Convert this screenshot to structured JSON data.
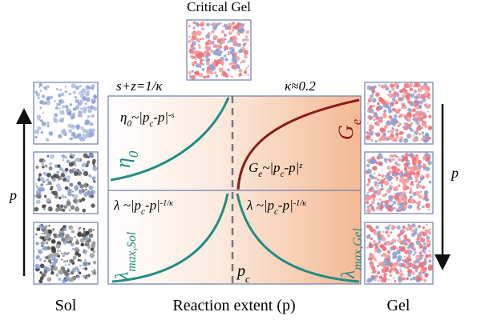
{
  "header": {
    "title": "Critical Gel"
  },
  "annotations": {
    "relation": "s+z=1/κ",
    "kappa": "κ≈0.2",
    "eta_law": {
      "lhs": "η",
      "lhs_sub": "0",
      "mid": "~|p",
      "mid_sub": "c",
      "tail": "-p|",
      "exp": "-s"
    },
    "ge_law": {
      "lhs": "G",
      "lhs_sub": "e",
      "mid": "~|p",
      "mid_sub": "c",
      "tail": "-p|",
      "exp": "z"
    },
    "lambda_sol_law": {
      "lhs": "λ",
      "mid": " ~|p",
      "mid_sub": "c",
      "tail": "-p|",
      "exp": "-1/κ"
    },
    "lambda_gel_law": {
      "lhs": "λ",
      "mid": " ~|p",
      "mid_sub": "c",
      "tail": "-p|",
      "exp": "-1/κ"
    },
    "eta_label": {
      "base": "η",
      "sub": "0"
    },
    "ge_label": {
      "base": "G",
      "sub": "e"
    },
    "lambda_sol_label": {
      "base": "λ",
      "sub": "max,Sol"
    },
    "lambda_gel_label": {
      "base": "λ",
      "sub": "max,Gel"
    },
    "pc": {
      "base": "p",
      "sub": "c"
    }
  },
  "labels": {
    "sol": "Sol",
    "gel": "Gel",
    "x_axis": "Reaction extent (p)",
    "p_left": "p",
    "p_right": "p"
  }
}
